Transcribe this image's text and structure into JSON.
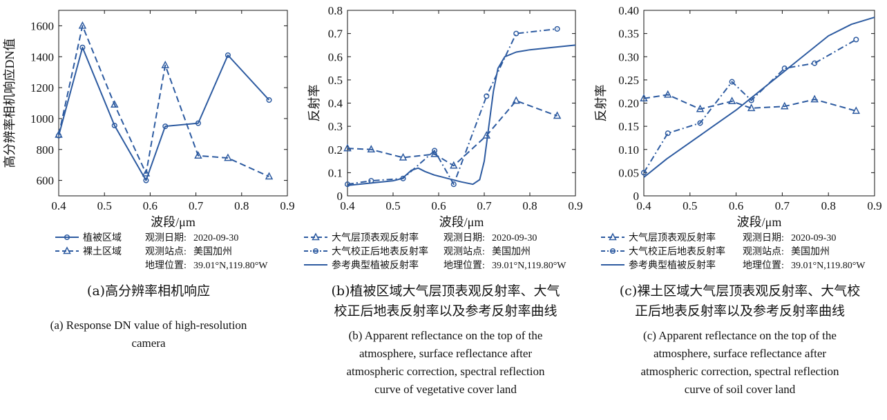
{
  "colors": {
    "line": "#2c5aa0",
    "axis": "#111111"
  },
  "meta": {
    "date_label": "观测日期:",
    "date_value": "2020-09-30",
    "site_label": "观测站点:",
    "site_value": "美国加州",
    "loc_label": "地理位置:",
    "loc_value": "39.01°N,119.80°W"
  },
  "chart_data": [
    {
      "type": "line",
      "xlabel": "波段/μm",
      "ylabel": "高分辨率相机响应DN值",
      "xlim": [
        0.4,
        0.9
      ],
      "ylim": [
        500,
        1700
      ],
      "xticks": [
        "0.4",
        "0.5",
        "0.6",
        "0.7",
        "0.8",
        "0.9"
      ],
      "yticks": [
        "600",
        "800",
        "1000",
        "1200",
        "1400",
        "1600"
      ],
      "series": [
        {
          "name": "植被区域",
          "style": "solid",
          "marker": "circle",
          "x": [
            0.4,
            0.452,
            0.522,
            0.591,
            0.633,
            0.705,
            0.77,
            0.86
          ],
          "y": [
            890,
            1460,
            955,
            600,
            950,
            970,
            1410,
            1120
          ]
        },
        {
          "name": "裸土区域",
          "style": "dashed",
          "marker": "triangle",
          "x": [
            0.4,
            0.452,
            0.522,
            0.591,
            0.633,
            0.705,
            0.77,
            0.86
          ],
          "y": [
            895,
            1600,
            1090,
            645,
            1345,
            760,
            745,
            625
          ]
        }
      ],
      "caption_zh": "(a)高分辨率相机响应",
      "caption_en": [
        "(a) Response DN value of high-resolution",
        "camera"
      ]
    },
    {
      "type": "line",
      "xlabel": "波段/μm",
      "ylabel": "反射率",
      "xlim": [
        0.4,
        0.9
      ],
      "ylim": [
        0,
        0.8
      ],
      "xticks": [
        "0.4",
        "0.5",
        "0.6",
        "0.7",
        "0.8",
        "0.9"
      ],
      "yticks": [
        "0",
        "0.1",
        "0.2",
        "0.3",
        "0.4",
        "0.5",
        "0.6",
        "0.7",
        "0.8"
      ],
      "series": [
        {
          "name": "大气层顶表观反射率",
          "style": "dashed",
          "marker": "triangle",
          "x": [
            0.4,
            0.452,
            0.522,
            0.591,
            0.633,
            0.705,
            0.77,
            0.86
          ],
          "y": [
            0.205,
            0.2,
            0.165,
            0.18,
            0.13,
            0.26,
            0.41,
            0.345
          ]
        },
        {
          "name": "大气校正后地表反射率",
          "style": "dashdot",
          "marker": "circle",
          "x": [
            0.4,
            0.452,
            0.522,
            0.591,
            0.633,
            0.705,
            0.77,
            0.86
          ],
          "y": [
            0.05,
            0.065,
            0.075,
            0.195,
            0.05,
            0.43,
            0.7,
            0.72
          ]
        },
        {
          "name": "参考典型植被反射率",
          "style": "solid",
          "marker": "none",
          "x": [
            0.4,
            0.45,
            0.5,
            0.52,
            0.54,
            0.555,
            0.57,
            0.59,
            0.62,
            0.65,
            0.675,
            0.69,
            0.7,
            0.71,
            0.72,
            0.73,
            0.745,
            0.77,
            0.8,
            0.85,
            0.9
          ],
          "y": [
            0.045,
            0.055,
            0.065,
            0.075,
            0.11,
            0.12,
            0.105,
            0.09,
            0.075,
            0.06,
            0.05,
            0.07,
            0.15,
            0.3,
            0.45,
            0.55,
            0.6,
            0.62,
            0.63,
            0.64,
            0.65
          ]
        }
      ],
      "caption_zh": [
        "(b)植被区域大气层顶表观反射率、大气",
        "校正后地表反射率以及参考反射率曲线"
      ],
      "caption_en": [
        "(b) Apparent reflectance on the top of the",
        "atmosphere, surface reflectance after",
        "atmospheric correction, spectral reflection",
        "curve of vegetative cover land"
      ]
    },
    {
      "type": "line",
      "xlabel": "波段/μm",
      "ylabel": "反射率",
      "xlim": [
        0.4,
        0.9
      ],
      "ylim": [
        0,
        0.4
      ],
      "xticks": [
        "0.4",
        "0.5",
        "0.6",
        "0.7",
        "0.8",
        "0.9"
      ],
      "yticks": [
        "0",
        "0.05",
        "0.10",
        "0.15",
        "0.20",
        "0.25",
        "0.30",
        "0.35",
        "0.40"
      ],
      "series": [
        {
          "name": "大气层顶表观反射率",
          "style": "dashed",
          "marker": "triangle",
          "x": [
            0.4,
            0.452,
            0.522,
            0.591,
            0.633,
            0.705,
            0.77,
            0.86
          ],
          "y": [
            0.21,
            0.218,
            0.187,
            0.204,
            0.189,
            0.193,
            0.208,
            0.183
          ]
        },
        {
          "name": "大气校正后地表反射率",
          "style": "dashdot",
          "marker": "circle",
          "x": [
            0.4,
            0.452,
            0.522,
            0.591,
            0.633,
            0.705,
            0.77,
            0.86
          ],
          "y": [
            0.05,
            0.135,
            0.157,
            0.246,
            0.206,
            0.275,
            0.286,
            0.337
          ]
        },
        {
          "name": "参考典型植被反射率",
          "style": "solid",
          "marker": "none",
          "x": [
            0.4,
            0.45,
            0.5,
            0.55,
            0.6,
            0.65,
            0.7,
            0.75,
            0.8,
            0.85,
            0.9
          ],
          "y": [
            0.04,
            0.08,
            0.115,
            0.15,
            0.185,
            0.225,
            0.265,
            0.305,
            0.345,
            0.37,
            0.385
          ]
        }
      ],
      "caption_zh": [
        "(c)裸土区域大气层顶表观反射率、大气校",
        "正后地表反射率以及参考反射率曲线"
      ],
      "caption_en": [
        "(c) Apparent reflectance on the top of the",
        "atmosphere, surface reflectance after",
        "atmospheric correction, spectral reflection",
        "curve of soil cover land"
      ]
    }
  ]
}
